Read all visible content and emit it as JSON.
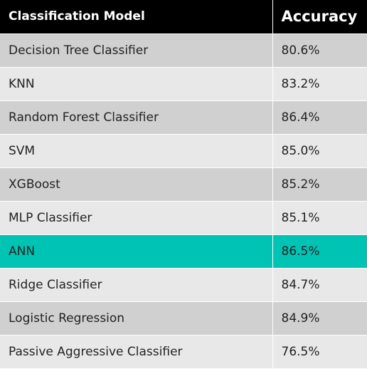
{
  "table": {
    "headers": {
      "model": "Classification Model",
      "accuracy": "Accuracy"
    },
    "rows": [
      {
        "model": "Decision Tree Classifier",
        "accuracy": "80.6%"
      },
      {
        "model": "KNN",
        "accuracy": "83.2%"
      },
      {
        "model": "Random Forest Classifier",
        "accuracy": "86.4%"
      },
      {
        "model": "SVM",
        "accuracy": "85.0%"
      },
      {
        "model": "XGBoost",
        "accuracy": "85.2%"
      },
      {
        "model": "MLP Classifier",
        "accuracy": "85.1%"
      },
      {
        "model": "ANN",
        "accuracy": "86.5%"
      },
      {
        "model": "Ridge Classifier",
        "accuracy": "84.7%"
      },
      {
        "model": "Logistic Regression",
        "accuracy": "84.9%"
      },
      {
        "model": "Passive Aggressive Classifier",
        "accuracy": "76.5%"
      }
    ],
    "highlighted_row": "ANN"
  },
  "colors": {
    "header_bg": "#000000",
    "header_text": "#ffffff",
    "row_dark": "#d0d0d0",
    "row_light": "#e8e8e8",
    "highlight": "#00c4b3"
  }
}
